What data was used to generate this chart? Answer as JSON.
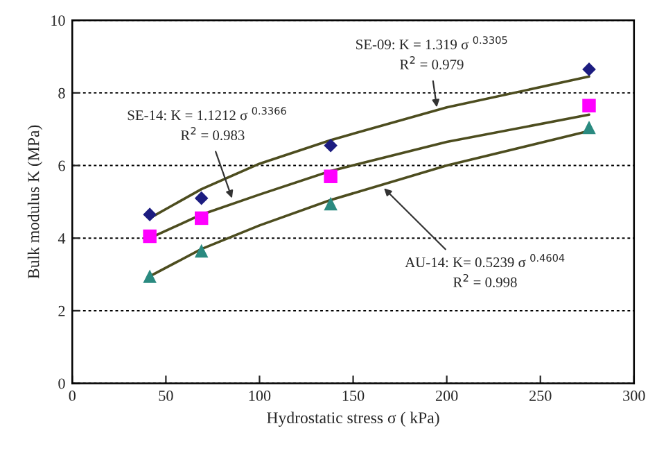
{
  "chart_data": {
    "type": "scatter",
    "xlabel": "Hydrostatic stress σ ( kPa)",
    "ylabel": "Bulk modulus K (MPa)",
    "xlim": [
      0,
      300
    ],
    "xticks": [
      0,
      50,
      100,
      150,
      200,
      250,
      300
    ],
    "ylim": [
      0,
      10
    ],
    "yticks": [
      0,
      2,
      4,
      6,
      8,
      10
    ],
    "grid": "y",
    "legend": false,
    "series": [
      {
        "type": "scatter",
        "marker": "diamond",
        "color": "#1c1c80",
        "x": [
          41.4,
          69,
          138,
          276
        ],
        "values": [
          4.65,
          5.1,
          6.55,
          8.65
        ]
      },
      {
        "type": "scatter",
        "marker": "square",
        "color": "#ff00ff",
        "x": [
          41.4,
          69,
          138,
          276
        ],
        "values": [
          4.05,
          4.55,
          5.7,
          7.65
        ]
      },
      {
        "type": "scatter",
        "marker": "triangle",
        "color": "#2a8a80",
        "x": [
          41.4,
          69,
          138,
          276
        ],
        "values": [
          2.95,
          3.65,
          4.95,
          7.05
        ]
      },
      {
        "type": "line",
        "marker": "none",
        "line_style": "solid",
        "color": "#4d4d1f",
        "x": [
          41.4,
          69,
          100,
          138,
          200,
          276
        ],
        "values": [
          4.55,
          5.35,
          6.05,
          6.7,
          7.6,
          8.45
        ]
      },
      {
        "type": "line",
        "marker": "none",
        "line_style": "solid",
        "color": "#4d4d1f",
        "x": [
          41.4,
          69,
          100,
          138,
          200,
          276
        ],
        "values": [
          4.0,
          4.65,
          5.2,
          5.85,
          6.65,
          7.4
        ]
      },
      {
        "type": "line",
        "marker": "none",
        "line_style": "solid",
        "color": "#4d4d1f",
        "x": [
          41.4,
          69,
          100,
          138,
          200,
          276
        ],
        "values": [
          2.95,
          3.7,
          4.35,
          5.05,
          6.0,
          6.95
        ]
      }
    ],
    "annotations": [
      "SE-09: K = 1.319 σ $^{0.3305}$",
      "SE-14: K = 1.1212 σ $^{0.3366}$",
      {
        "text": "AU-14: K= 0.5239 σ $^{0.4604}$",
        "x": 165,
        "y": 5.45
      },
      {
        "text": "R$^{2}$ = 0.979",
        "x": 195,
        "y": 7.5
      },
      {
        "text": "R$^{2}$ = 0.983",
        "x": 86,
        "y": 5.0
      },
      "R$^{2}$ = 0.998"
    ]
  }
}
